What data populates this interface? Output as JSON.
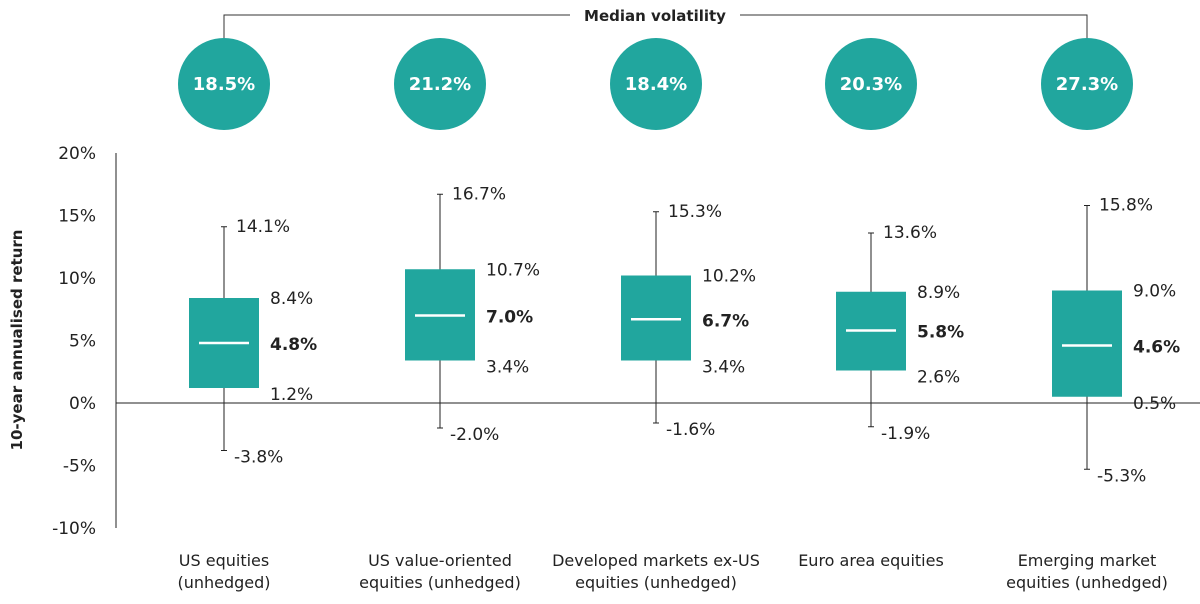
{
  "chart_data": {
    "type": "boxplot",
    "title": "",
    "ylabel": "10-year annualised return",
    "ylim": [
      -10,
      20
    ],
    "yticks": [
      "20%",
      "15%",
      "10%",
      "5%",
      "0%",
      "-5%",
      "-10%"
    ],
    "ytick_values": [
      20,
      15,
      10,
      5,
      0,
      -5,
      -10
    ],
    "volatility_header": "Median volatility",
    "color": "#21a69e",
    "categories": [
      [
        "US equities",
        "(unhedged)"
      ],
      [
        "US value-oriented",
        "equities (unhedged)"
      ],
      [
        "Developed markets ex-US",
        "equities (unhedged)"
      ],
      [
        "Euro area equities",
        ""
      ],
      [
        "Emerging market",
        "equities (unhedged)"
      ]
    ],
    "series": [
      {
        "min": -3.8,
        "q1": 1.2,
        "median": 4.8,
        "q3": 8.4,
        "max": 14.1,
        "volatility": "18.5%"
      },
      {
        "min": -2.0,
        "q1": 3.4,
        "median": 7.0,
        "q3": 10.7,
        "max": 16.7,
        "volatility": "21.2%"
      },
      {
        "min": -1.6,
        "q1": 3.4,
        "median": 6.7,
        "q3": 10.2,
        "max": 15.3,
        "volatility": "18.4%"
      },
      {
        "min": -1.9,
        "q1": 2.6,
        "median": 5.8,
        "q3": 8.9,
        "max": 13.6,
        "volatility": "20.3%"
      },
      {
        "min": -5.3,
        "q1": 0.5,
        "median": 4.6,
        "q3": 9.0,
        "max": 15.8,
        "volatility": "27.3%"
      }
    ]
  }
}
